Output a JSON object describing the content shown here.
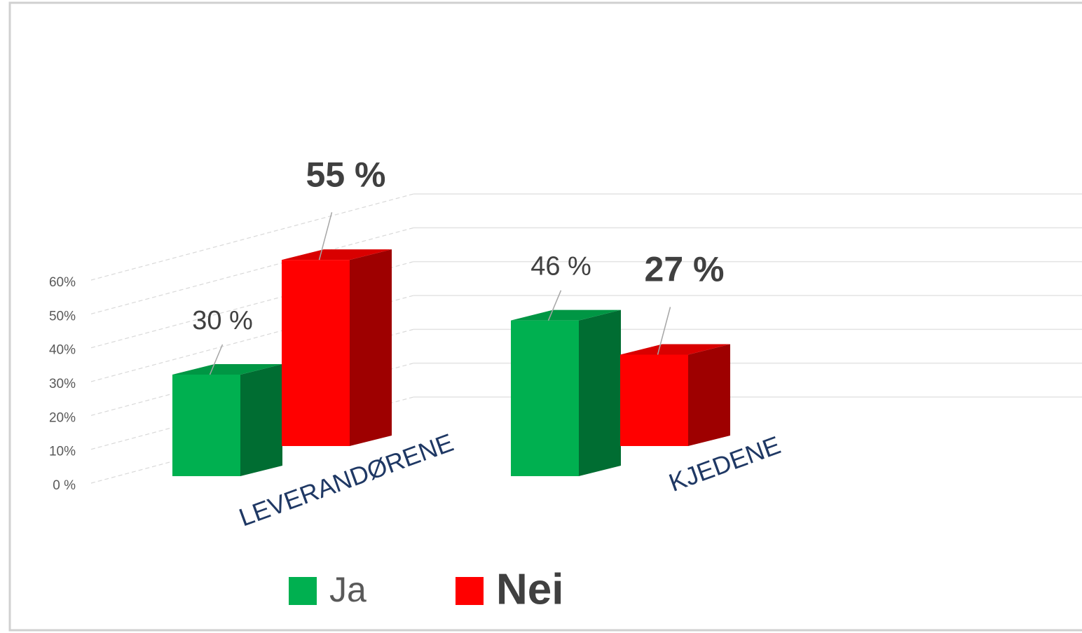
{
  "chart_data": {
    "type": "bar3d",
    "categories": [
      "LEVERANDØRENE",
      "KJEDENE"
    ],
    "series": [
      {
        "name": "Ja",
        "color": "#00b050",
        "values": [
          30,
          46
        ],
        "value_labels": [
          "30 %",
          "46 %"
        ]
      },
      {
        "name": "Nei",
        "color": "#ff0000",
        "values": [
          55,
          27
        ],
        "value_labels": [
          "55 %",
          "27 %"
        ]
      }
    ],
    "ylim": [
      0,
      60
    ],
    "yticks": [
      {
        "value": 0,
        "label": "0 %"
      },
      {
        "value": 10,
        "label": "10%"
      },
      {
        "value": 20,
        "label": "20%"
      },
      {
        "value": 30,
        "label": "30%"
      },
      {
        "value": 40,
        "label": "40%"
      },
      {
        "value": 50,
        "label": "50%"
      },
      {
        "value": 60,
        "label": "60%"
      }
    ],
    "grid": true
  }
}
